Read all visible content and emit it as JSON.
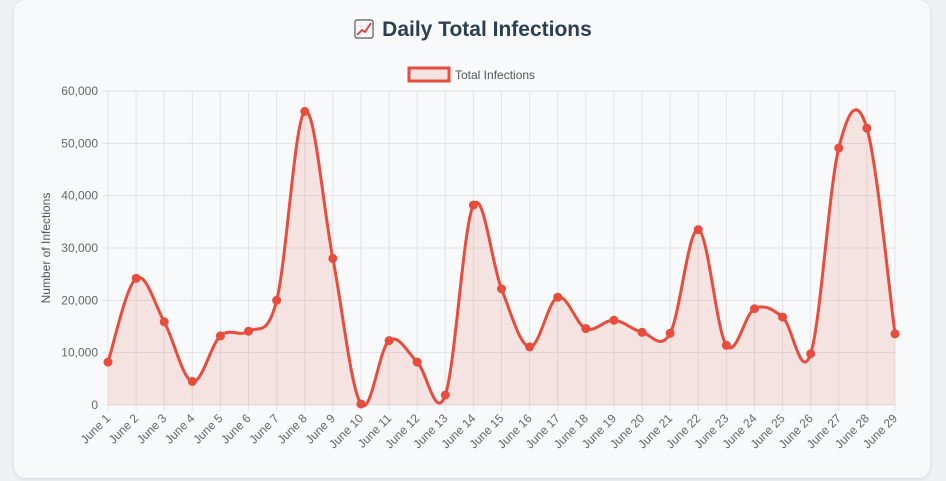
{
  "header": {
    "title": "Daily Total Infections",
    "icon": "chart-increasing-icon"
  },
  "colors": {
    "line": "#e74c3c",
    "fill": "rgba(231,76,60,0.12)",
    "grid": "#e3e3e3"
  },
  "chart_data": {
    "type": "line",
    "title": "Daily Total Infections",
    "ylabel": "Number of Infections",
    "xlabel": "",
    "ylim": [
      0,
      60000
    ],
    "yticks": [
      "0",
      "10,000",
      "20,000",
      "30,000",
      "40,000",
      "50,000",
      "60,000"
    ],
    "grid": true,
    "legend_position": "top",
    "smooth": true,
    "filled": true,
    "categories": [
      "June 1",
      "June 2",
      "June 3",
      "June 4",
      "June 5",
      "June 6",
      "June 7",
      "June 8",
      "June 9",
      "June 10",
      "June 11",
      "June 12",
      "June 13",
      "June 14",
      "June 15",
      "June 16",
      "June 17",
      "June 18",
      "June 19",
      "June 20",
      "June 21",
      "June 22",
      "June 23",
      "June 24",
      "June 25",
      "June 26",
      "June 27",
      "June 28",
      "June 29"
    ],
    "series": [
      {
        "name": "Total Infections",
        "values": [
          8200,
          24200,
          15900,
          4500,
          13200,
          14100,
          20000,
          56100,
          28000,
          200,
          12300,
          8200,
          1900,
          38200,
          22200,
          11100,
          20600,
          14600,
          16200,
          13900,
          13700,
          33500,
          11400,
          18400,
          16800,
          9800,
          49100,
          52900,
          13600
        ]
      }
    ]
  }
}
